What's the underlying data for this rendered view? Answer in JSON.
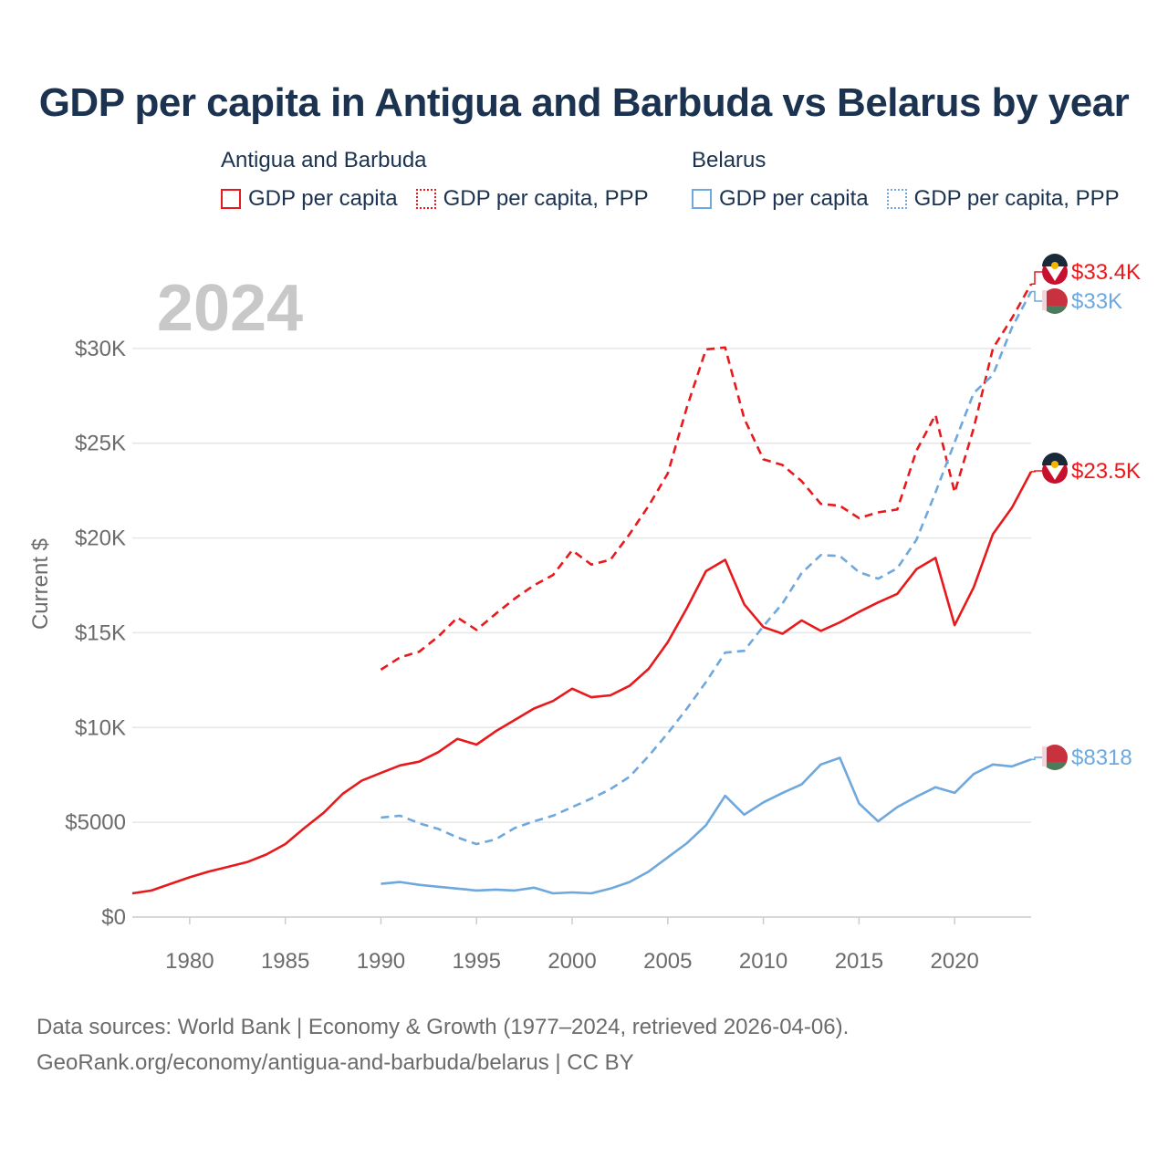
{
  "title": "GDP per capita in Antigua and Barbuda vs Belarus by year",
  "colors": {
    "antigua": "#e8191c",
    "belarus": "#6fa8dc",
    "title": "#1b3350"
  },
  "legend": {
    "groups": [
      {
        "name": "Antigua and Barbuda",
        "items": [
          {
            "label": "GDP per capita",
            "style": "solid",
            "color_key": "antigua"
          },
          {
            "label": "GDP per capita, PPP",
            "style": "dotted",
            "color_key": "antigua"
          }
        ]
      },
      {
        "name": "Belarus",
        "items": [
          {
            "label": "GDP per capita",
            "style": "solid",
            "color_key": "belarus"
          },
          {
            "label": "GDP per capita, PPP",
            "style": "dotted",
            "color_key": "belarus"
          }
        ]
      }
    ]
  },
  "footer": {
    "line1": "Data sources: World Bank | Economy & Growth (1977–2024, retrieved 2026-04-06).",
    "line2": "GeoRank.org/economy/antigua-and-barbuda/belarus | CC BY"
  },
  "chart_data": {
    "type": "line",
    "year_label": "2024",
    "ylabel": "Current $",
    "xlim": [
      1977,
      2024
    ],
    "ylim": [
      0,
      35000
    ],
    "x_ticks": [
      "1980",
      "1985",
      "1990",
      "1995",
      "2000",
      "2005",
      "2010",
      "2015",
      "2020"
    ],
    "x_tick_values": [
      1980,
      1985,
      1990,
      1995,
      2000,
      2005,
      2010,
      2015,
      2020
    ],
    "y_ticks": [
      "$0",
      "$5000",
      "$10K",
      "$15K",
      "$20K",
      "$25K",
      "$30K"
    ],
    "y_tick_values": [
      0,
      5000,
      10000,
      15000,
      20000,
      25000,
      30000
    ],
    "grid": true,
    "series": [
      {
        "name": "Antigua and Barbuda — GDP per capita",
        "color_key": "antigua",
        "dash": false,
        "end_label": "$23.5K",
        "start": 1977,
        "values": [
          1250,
          1400,
          1750,
          2100,
          2400,
          2650,
          2900,
          3300,
          3850,
          4700,
          5500,
          6500,
          7200,
          7600,
          8000,
          8200,
          8700,
          9400,
          9100,
          9800,
          10400,
          11000,
          11400,
          12050,
          11600,
          11700,
          12200,
          13100,
          14500,
          16300,
          18250,
          18850,
          16500,
          15300,
          14950,
          15650,
          15100,
          15550,
          16100,
          16600,
          17050,
          18350,
          18950,
          15400,
          17400,
          20200,
          21600,
          23500
        ]
      },
      {
        "name": "Antigua and Barbuda — GDP per capita, PPP",
        "color_key": "antigua",
        "dash": true,
        "end_label": "$33.4K",
        "start": 1990,
        "values": [
          13050,
          13700,
          14000,
          14800,
          15800,
          15150,
          16000,
          16800,
          17500,
          18050,
          19350,
          18600,
          18850,
          20200,
          21700,
          23400,
          26900,
          29950,
          30050,
          26300,
          24150,
          23850,
          23000,
          21800,
          21700,
          21050,
          21350,
          21500,
          24600,
          26500,
          22400,
          25800,
          30000,
          31600,
          33400
        ]
      },
      {
        "name": "Belarus — GDP per capita",
        "color_key": "belarus",
        "dash": false,
        "end_label": "$8318",
        "start": 1990,
        "values": [
          1750,
          1850,
          1700,
          1600,
          1500,
          1400,
          1450,
          1400,
          1550,
          1250,
          1300,
          1250,
          1500,
          1850,
          2400,
          3150,
          3900,
          4850,
          6400,
          5400,
          6050,
          6550,
          7000,
          8050,
          8400,
          6000,
          5050,
          5800,
          6350,
          6850,
          6550,
          7550,
          8050,
          7950,
          8318
        ]
      },
      {
        "name": "Belarus — GDP per capita, PPP",
        "color_key": "belarus",
        "dash": true,
        "end_label": "$33K",
        "start": 1990,
        "values": [
          5250,
          5350,
          4950,
          4650,
          4200,
          3850,
          4100,
          4700,
          5050,
          5350,
          5800,
          6250,
          6750,
          7400,
          8500,
          9700,
          11000,
          12400,
          13950,
          14050,
          15350,
          16550,
          18150,
          19100,
          19050,
          18200,
          17850,
          18400,
          19900,
          22400,
          25050,
          27650,
          28600,
          31100,
          33000
        ]
      }
    ]
  }
}
